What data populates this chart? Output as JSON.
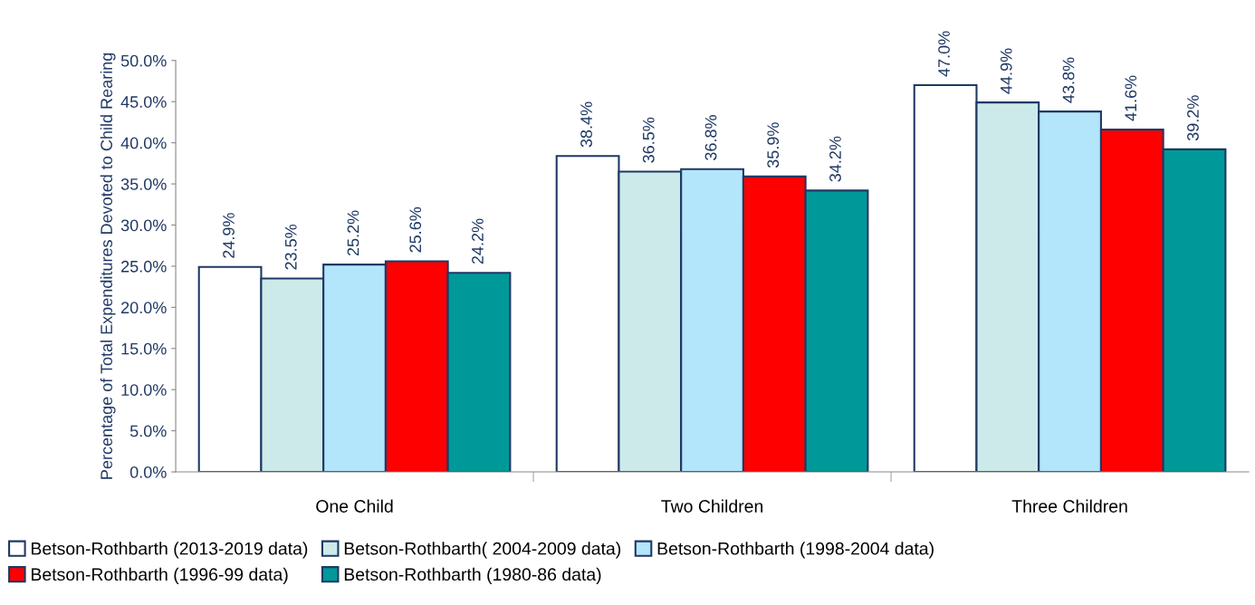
{
  "chart_data": {
    "type": "bar",
    "ylabel": "Percentage of Total Expenditures Devoted to Child Rearing",
    "categories": [
      "One Child",
      "Two Children",
      "Three Children"
    ],
    "series": [
      {
        "name": "Betson-Rothbarth (2013-2019 data)",
        "color": "#ffffff",
        "values": [
          24.9,
          38.4,
          47.0
        ],
        "value_labels": [
          "24.9%",
          "38.4%",
          "47.0%"
        ]
      },
      {
        "name": "Betson-Rothbarth( 2004-2009 data)",
        "color": "#cdeaea",
        "values": [
          23.5,
          36.5,
          44.9
        ],
        "value_labels": [
          "23.5%",
          "36.5%",
          "44.9%"
        ]
      },
      {
        "name": "Betson-Rothbarth (1998-2004 data)",
        "color": "#b3e5fb",
        "values": [
          25.2,
          36.8,
          43.8
        ],
        "value_labels": [
          "25.2%",
          "36.8%",
          "43.8%"
        ]
      },
      {
        "name": "Betson-Rothbarth (1996-99 data)",
        "color": "#ff0000",
        "values": [
          25.6,
          35.9,
          41.6
        ],
        "value_labels": [
          "25.6%",
          "35.9%",
          "41.6%"
        ]
      },
      {
        "name": "Betson-Rothbarth (1980-86 data)",
        "color": "#009999",
        "values": [
          24.2,
          34.2,
          39.2
        ],
        "value_labels": [
          "24.2%",
          "34.2%",
          "39.2%"
        ]
      }
    ],
    "ylim": [
      0,
      50
    ],
    "yticks": [
      {
        "value": 0,
        "label": "0.0%"
      },
      {
        "value": 5,
        "label": "5.0%"
      },
      {
        "value": 10,
        "label": "10.0%"
      },
      {
        "value": 15,
        "label": "15.0%"
      },
      {
        "value": 20,
        "label": "20.0%"
      },
      {
        "value": 25,
        "label": "25.0%"
      },
      {
        "value": 30,
        "label": "30.0%"
      },
      {
        "value": 35,
        "label": "35.0%"
      },
      {
        "value": 40,
        "label": "40.0%"
      },
      {
        "value": 45,
        "label": "45.0%"
      },
      {
        "value": 50,
        "label": "50.0%"
      }
    ],
    "grid": false,
    "legend": "bottom"
  }
}
